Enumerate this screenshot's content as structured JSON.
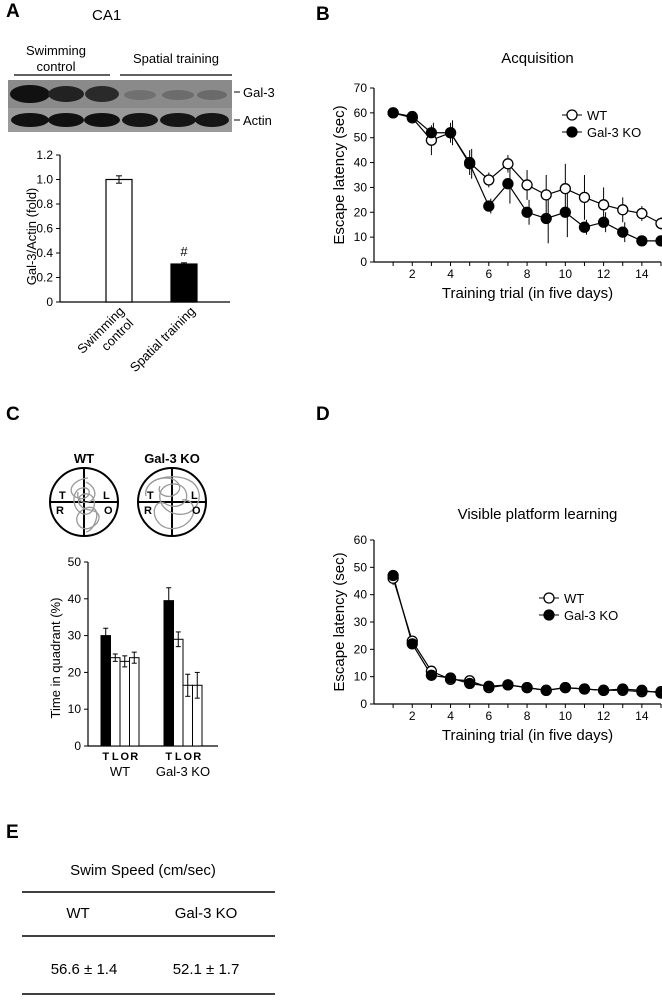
{
  "panels": {
    "A": {
      "letter": "A",
      "region": "CA1",
      "blot": {
        "groups": [
          "Swimming control",
          "Spatial training"
        ],
        "group_lines": [
          [
            "Swimming",
            "control"
          ],
          [
            "Spatial training"
          ]
        ],
        "rows": [
          "Gal-3",
          "Actin"
        ]
      },
      "chart_data": {
        "type": "bar",
        "categories": [
          "Swimming control",
          "Spatial training"
        ],
        "category_lines": [
          [
            "Swimming",
            "control"
          ],
          [
            "Spatial training"
          ]
        ],
        "values": [
          1.0,
          0.31
        ],
        "errors": [
          0.03,
          0.01
        ],
        "fills": [
          "#ffffff",
          "#000000"
        ],
        "ylabel": "Gal-3/Actin (fold)",
        "ylim": [
          0,
          1.2
        ],
        "yticks": [
          "0",
          "0.2",
          "0.4",
          "0.6",
          "0.8",
          "1.0",
          "1.2"
        ],
        "annotation": "#"
      }
    },
    "B": {
      "letter": "B",
      "chart_data": {
        "type": "line",
        "title": "Acquisition",
        "xlabel": "Training trial (in five days)",
        "ylabel": "Escape latency (sec)",
        "xlim": [
          0,
          15
        ],
        "ylim": [
          0,
          70
        ],
        "xticks": [
          "2",
          "4",
          "6",
          "8",
          "10",
          "12",
          "14"
        ],
        "yticks": [
          "0",
          "10",
          "20",
          "30",
          "40",
          "50",
          "60",
          "70"
        ],
        "legend_position": "right",
        "x": [
          1,
          2,
          3,
          4,
          5,
          6,
          7,
          8,
          9,
          10,
          11,
          12,
          13,
          14,
          15
        ],
        "series": [
          {
            "name": "WT",
            "marker": "open",
            "values": [
              60,
              58,
              49,
              52,
              40,
              33,
              39.5,
              31,
              27,
              29.5,
              26,
              23,
              21,
              19.5,
              15.5
            ],
            "errors": [
              1,
              1.5,
              6,
              4,
              5,
              3,
              3.5,
              6,
              8,
              10,
              9,
              7,
              5,
              3,
              2.5
            ]
          },
          {
            "name": "Gal-3 KO",
            "marker": "filled",
            "values": [
              60,
              58.5,
              52,
              52,
              39.5,
              22.5,
              31.5,
              20,
              17.5,
              20,
              14,
              16,
              12,
              8.5,
              8.5
            ],
            "errors": [
              1,
              1,
              4,
              5,
              6,
              3,
              8,
              5,
              10,
              10,
              3,
              4,
              4,
              1.5,
              1.5
            ]
          }
        ]
      }
    },
    "C": {
      "letter": "C",
      "maze_titles": [
        "WT",
        "Gal-3 KO"
      ],
      "quadrant_letters": [
        "T",
        "L",
        "R",
        "O"
      ],
      "chart_data": {
        "type": "bar",
        "ylabel": "Time in quadrant (%)",
        "ylim": [
          0,
          50
        ],
        "yticks": [
          "0",
          "10",
          "20",
          "30",
          "40",
          "50"
        ],
        "quadrants": [
          "T",
          "L",
          "O",
          "R"
        ],
        "groups": [
          "WT",
          "Gal-3 KO"
        ],
        "series": [
          {
            "group": "WT",
            "values": [
              30,
              24,
              23,
              24
            ],
            "errors": [
              2,
              1,
              1.5,
              1.5
            ]
          },
          {
            "group": "Gal-3 KO",
            "values": [
              39.5,
              29,
              16.5,
              16.5
            ],
            "errors": [
              3.5,
              2,
              3,
              3.5
            ]
          }
        ],
        "fills": [
          "#000000",
          "#ffffff",
          "#ffffff",
          "#ffffff"
        ]
      }
    },
    "D": {
      "letter": "D",
      "chart_data": {
        "type": "line",
        "title": "Visible platform learning",
        "xlabel": "Training trial (in five days)",
        "ylabel": "Escape latency (sec)",
        "xlim": [
          0,
          15
        ],
        "ylim": [
          0,
          60
        ],
        "xticks": [
          "2",
          "4",
          "6",
          "8",
          "10",
          "12",
          "14"
        ],
        "yticks": [
          "0",
          "10",
          "20",
          "30",
          "40",
          "50",
          "60"
        ],
        "legend_position": "right",
        "x": [
          1,
          2,
          3,
          4,
          5,
          6,
          7,
          8,
          9,
          10,
          11,
          12,
          13,
          14,
          15
        ],
        "series": [
          {
            "name": "WT",
            "marker": "open",
            "values": [
              46,
              23,
              12,
              9,
              8.5,
              6,
              7,
              6,
              5,
              6,
              5.5,
              5,
              5,
              4.5,
              4.5
            ],
            "errors": [
              2.5,
              1.5,
              1,
              1,
              1,
              1,
              1,
              0.8,
              0.8,
              0.8,
              0.8,
              0.8,
              0.8,
              0.8,
              0.8
            ]
          },
          {
            "name": "Gal-3 KO",
            "marker": "filled",
            "values": [
              47,
              22,
              10.5,
              9.5,
              7.5,
              6.5,
              7,
              6,
              5,
              6,
              5.5,
              5,
              5.5,
              5,
              4
            ]
          }
        ]
      }
    },
    "E": {
      "letter": "E",
      "chart_data": {
        "type": "table",
        "title": "Swim Speed (cm/sec)",
        "columns": [
          "WT",
          "Gal-3 KO"
        ],
        "rows": [
          [
            "56.6 ± 1.4",
            "52.1 ± 1.7"
          ]
        ]
      }
    }
  }
}
